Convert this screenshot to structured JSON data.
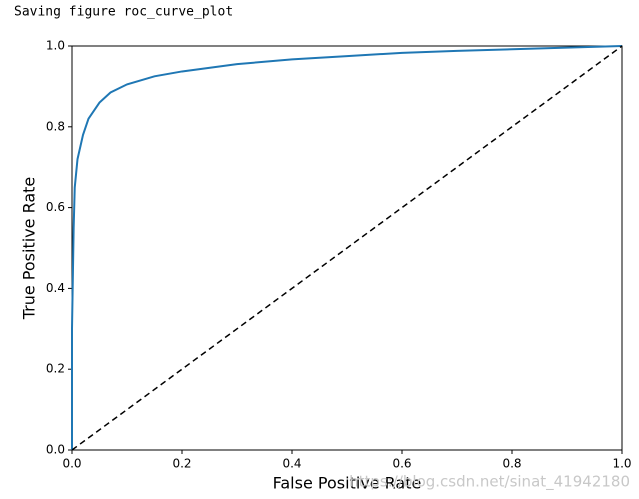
{
  "output_text": "Saving figure roc_curve_plot",
  "watermark": "https://blog.csdn.net/sinat_41942180",
  "chart_data": {
    "type": "line",
    "xlabel": "False Positive Rate",
    "ylabel": "True Positive Rate",
    "xlim": [
      0,
      1
    ],
    "ylim": [
      0,
      1
    ],
    "xticks": [
      {
        "value": 0,
        "label": "0.0"
      },
      0.2,
      0.4,
      0.6,
      0.8,
      {
        "value": 1,
        "label": "1.0"
      }
    ],
    "yticks": [
      {
        "value": 0,
        "label": "0.0"
      },
      0.2,
      0.4,
      0.6,
      0.8,
      {
        "value": 1,
        "label": "1.0"
      }
    ],
    "grid": false,
    "series": [
      {
        "color": "#1f77b4",
        "dash": false,
        "x": [
          0,
          0,
          0.003,
          0.005,
          0.01,
          0.02,
          0.03,
          0.05,
          0.07,
          0.1,
          0.15,
          0.2,
          0.3,
          0.4,
          0.5,
          0.6,
          0.7,
          0.8,
          0.9,
          1
        ],
        "values": [
          0,
          0.3,
          0.55,
          0.65,
          0.72,
          0.78,
          0.82,
          0.86,
          0.885,
          0.905,
          0.925,
          0.937,
          0.955,
          0.967,
          0.975,
          0.983,
          0.988,
          0.992,
          0.996,
          1
        ]
      },
      {
        "color": "#000000",
        "dash": true,
        "x": [
          0,
          1
        ],
        "values": [
          0,
          1
        ]
      }
    ]
  }
}
